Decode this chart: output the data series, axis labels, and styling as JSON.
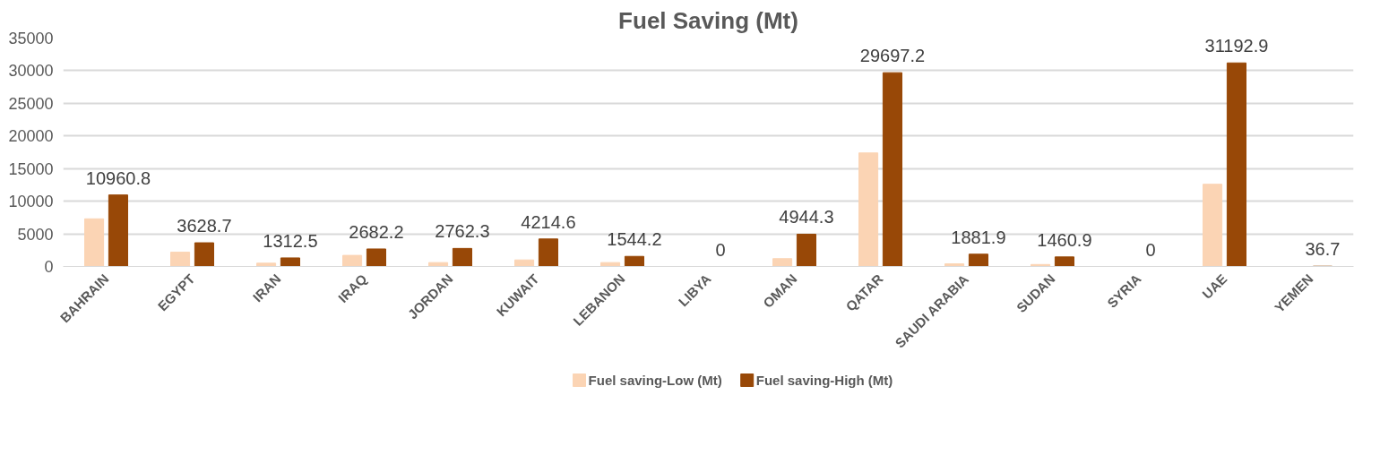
{
  "chart_data": {
    "type": "bar",
    "title": "Fuel Saving (Mt)",
    "categories": [
      "BAHRAIN",
      "EGYPT",
      "IRAN",
      "IRAQ",
      "JORDAN",
      "KUWAIT",
      "LEBANON",
      "LIBYA",
      "OMAN",
      "QATAR",
      "SAUDI ARABIA",
      "SUDAN",
      "SYRIA",
      "UAE",
      "YEMEN"
    ],
    "series": [
      {
        "name": "Fuel saving-Low (Mt)",
        "color": "#fbd4b4",
        "values": [
          7300,
          2200,
          500,
          1700,
          600,
          1000,
          600,
          0,
          1200,
          17400,
          400,
          300,
          0,
          12600,
          0
        ]
      },
      {
        "name": "Fuel saving-High (Mt)",
        "color": "#984807",
        "values": [
          10960.8,
          3628.7,
          1312.5,
          2682.2,
          2762.3,
          4214.6,
          1544.2,
          0,
          4944.3,
          29697.2,
          1881.9,
          1460.9,
          0,
          31192.9,
          36.7
        ],
        "value_labels": [
          "10960.8",
          "3628.7",
          "1312.5",
          "2682.2",
          "2762.3",
          "4214.6",
          "1544.2",
          "0",
          "4944.3",
          "29697.2",
          "1881.9",
          "1460.9",
          "0",
          "31192.9",
          "36.7"
        ]
      }
    ],
    "ylim": [
      0,
      35000
    ],
    "yticks": [
      0,
      5000,
      10000,
      15000,
      20000,
      25000,
      30000,
      35000
    ],
    "grid": "y",
    "legend": "bottom"
  }
}
